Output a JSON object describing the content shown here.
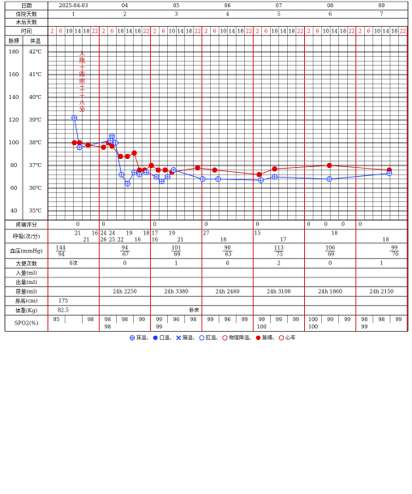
{
  "header": {
    "date_label": "日期",
    "stay_days_label": "住院天数",
    "postop_days_label": "术后天数",
    "time_label": "时间",
    "pulse_label": "脉搏",
    "temp_label": "体温"
  },
  "days": [
    {
      "date": "2025-04-03",
      "stay": "1"
    },
    {
      "date": "04",
      "stay": "2"
    },
    {
      "date": "05",
      "stay": "3"
    },
    {
      "date": "06",
      "stay": "4"
    },
    {
      "date": "07",
      "stay": "5"
    },
    {
      "date": "08",
      "stay": "6"
    },
    {
      "date": "09",
      "stay": "7"
    }
  ],
  "hours": [
    "2",
    "6",
    "10",
    "14",
    "18",
    "22"
  ],
  "pulse_ticks": [
    "180",
    "160",
    "140",
    "120",
    "100",
    "80",
    "60",
    "40"
  ],
  "temp_ticks": [
    "42℃",
    "41℃",
    "40℃",
    "39℃",
    "38℃",
    "37℃",
    "36℃",
    "35℃"
  ],
  "admission_note": "入院十四时二十八分",
  "rows": {
    "pain_label": "疼痛评分",
    "resp_label": "呼吸(次/分)",
    "bp_label": "血压(mmHg)",
    "stool_label": "大便次数",
    "intake_label": "入量(ml)",
    "output_label": "出量(ml)",
    "urine_label": "尿量(ml)",
    "height_label": "身高(cm)",
    "weight_label": "体重(Kg)",
    "spo2_label": "SPO2(%)"
  },
  "pain_scores": [
    {
      "slot": 3,
      "value": "0"
    },
    {
      "slot": 6,
      "value": "0"
    },
    {
      "slot": 12,
      "value": "0"
    },
    {
      "slot": 18,
      "value": "0"
    },
    {
      "slot": 24,
      "value": "0"
    },
    {
      "slot": 30,
      "value": "0"
    },
    {
      "slot": 32,
      "value": "0"
    },
    {
      "slot": 34,
      "value": "0"
    },
    {
      "slot": 36,
      "value": "0"
    }
  ],
  "resp_values": [
    {
      "slot": 3,
      "pos": "up",
      "value": "21"
    },
    {
      "slot": 4,
      "pos": "down",
      "value": "21"
    },
    {
      "slot": 5,
      "pos": "up",
      "value": "16"
    },
    {
      "slot": 6,
      "pos": "up",
      "value": "24"
    },
    {
      "slot": 6,
      "pos": "down",
      "value": "26"
    },
    {
      "slot": 7,
      "pos": "up",
      "value": "24"
    },
    {
      "slot": 7,
      "pos": "down",
      "value": "25"
    },
    {
      "slot": 8,
      "pos": "down",
      "value": "22"
    },
    {
      "slot": 9,
      "pos": "up",
      "value": "19"
    },
    {
      "slot": 10,
      "pos": "down",
      "value": "16"
    },
    {
      "slot": 11,
      "pos": "up",
      "value": "18"
    },
    {
      "slot": 12,
      "pos": "up",
      "value": "17"
    },
    {
      "slot": 12,
      "pos": "down",
      "value": "16"
    },
    {
      "slot": 14,
      "pos": "up",
      "value": "19"
    },
    {
      "slot": 15,
      "pos": "down",
      "value": "21"
    },
    {
      "slot": 18,
      "pos": "up",
      "value": "27"
    },
    {
      "slot": 20,
      "pos": "down",
      "value": "18"
    },
    {
      "slot": 24,
      "pos": "up",
      "value": "15"
    },
    {
      "slot": 27,
      "pos": "down",
      "value": "17"
    },
    {
      "slot": 33,
      "pos": "up",
      "value": "18"
    },
    {
      "slot": 39,
      "pos": "down",
      "value": "18"
    }
  ],
  "bp": [
    {
      "systolic": "144",
      "diastolic": "94",
      "align": "left"
    },
    {
      "systolic": "94",
      "diastolic": "67",
      "align": "center"
    },
    {
      "systolic": "101",
      "diastolic": "69",
      "align": "center"
    },
    {
      "systolic": "90",
      "diastolic": "63",
      "align": "center"
    },
    {
      "systolic": "113",
      "diastolic": "75",
      "align": "center"
    },
    {
      "systolic": "106",
      "diastolic": "69",
      "align": "center"
    },
    {
      "systolic": "99",
      "diastolic": "70",
      "align": "right"
    }
  ],
  "stool": [
    "0次",
    "0",
    "1",
    "0",
    "2",
    "0",
    "1"
  ],
  "urine": [
    "",
    "24h 2250",
    "24h 3380",
    "24h 2460",
    "24h 3100",
    "24h 1860",
    "24h 2150"
  ],
  "height": [
    "175",
    "",
    "",
    "",
    "",
    "",
    ""
  ],
  "weight": [
    "82.5",
    "",
    "卧床",
    "",
    "",
    "",
    ""
  ],
  "spo2": [
    {
      "top": [
        "95",
        "",
        "98"
      ],
      "bottom": ""
    },
    {
      "top": [
        "98",
        "98",
        "99"
      ],
      "bottom": "98"
    },
    {
      "top": [
        "99",
        "96",
        "98"
      ],
      "bottom": "99"
    },
    {
      "top": [
        "99",
        "96",
        "99"
      ],
      "bottom": ""
    },
    {
      "top": [
        "99",
        "99",
        "99"
      ],
      "bottom": "100"
    },
    {
      "top": [
        "100",
        "99",
        "99"
      ],
      "bottom": "100"
    },
    {
      "top": [
        "98",
        "98",
        "99"
      ],
      "bottom": "99"
    }
  ],
  "legend": [
    {
      "symbol": "ear",
      "label": "耳温、"
    },
    {
      "symbol": "oral",
      "label": "口温、"
    },
    {
      "symbol": "axil",
      "label": "腋温、"
    },
    {
      "symbol": "rect",
      "label": "肛温、"
    },
    {
      "symbol": "cool",
      "label": "物理降温、"
    },
    {
      "symbol": "pulse",
      "label": "脉搏、"
    },
    {
      "symbol": "heart",
      "label": "心率"
    }
  ],
  "chart_data": {
    "type": "line",
    "x_unit": "4-hour time slots from day 1 02:00 (slot 0) to day 7 22:00 (slot 41)",
    "series": [
      {
        "name": "耳温",
        "axis": "temperature (℃)",
        "color": "#1a3cff",
        "points": [
          {
            "slot": 2.6,
            "value": 39.1
          },
          {
            "slot": 3.2,
            "value": 37.8
          },
          {
            "slot": 6.8,
            "value": 38.1
          },
          {
            "slot": 7.0,
            "value": 38.3
          },
          {
            "slot": 7.4,
            "value": 38.0
          },
          {
            "slot": 8.1,
            "value": 36.6
          },
          {
            "slot": 8.8,
            "value": 36.2
          },
          {
            "slot": 9.6,
            "value": 36.7
          },
          {
            "slot": 10.2,
            "value": 36.6
          },
          {
            "slot": 11.0,
            "value": 36.7
          },
          {
            "slot": 12.2,
            "value": 36.5
          },
          {
            "slot": 12.8,
            "value": 36.3
          },
          {
            "slot": 13.5,
            "value": 36.5
          },
          {
            "slot": 14.2,
            "value": 36.8
          },
          {
            "slot": 17.6,
            "value": 36.4
          },
          {
            "slot": 19.4,
            "value": 36.4
          },
          {
            "slot": 24.4,
            "value": 36.35
          },
          {
            "slot": 26.0,
            "value": 36.5
          },
          {
            "slot": 32.4,
            "value": 36.4
          },
          {
            "slot": 39.4,
            "value": 36.65
          }
        ]
      },
      {
        "name": "脉搏",
        "axis": "pulse (bpm)",
        "color": "#e00000",
        "points": [
          {
            "slot": 2.6,
            "value": 100
          },
          {
            "slot": 3.2,
            "value": 100
          },
          {
            "slot": 4.2,
            "value": 98
          },
          {
            "slot": 6.0,
            "value": 96
          },
          {
            "slot": 6.6,
            "value": 100
          },
          {
            "slot": 7.0,
            "value": 97
          },
          {
            "slot": 8.0,
            "value": 88
          },
          {
            "slot": 8.8,
            "value": 88
          },
          {
            "slot": 9.6,
            "value": 91
          },
          {
            "slot": 10.2,
            "value": 76
          },
          {
            "slot": 10.8,
            "value": 76
          },
          {
            "slot": 11.6,
            "value": 80
          },
          {
            "slot": 12.4,
            "value": 76
          },
          {
            "slot": 13.2,
            "value": 76
          },
          {
            "slot": 14.0,
            "value": 74
          },
          {
            "slot": 17.0,
            "value": 78
          },
          {
            "slot": 19.0,
            "value": 76
          },
          {
            "slot": 24.2,
            "value": 72
          },
          {
            "slot": 26.0,
            "value": 77
          },
          {
            "slot": 32.4,
            "value": 80
          },
          {
            "slot": 39.4,
            "value": 76
          }
        ]
      }
    ],
    "y_left_label": "脉搏",
    "y_left_range": [
      40,
      180
    ],
    "y_right_label": "体温",
    "y_right_range": [
      35,
      42
    ]
  }
}
